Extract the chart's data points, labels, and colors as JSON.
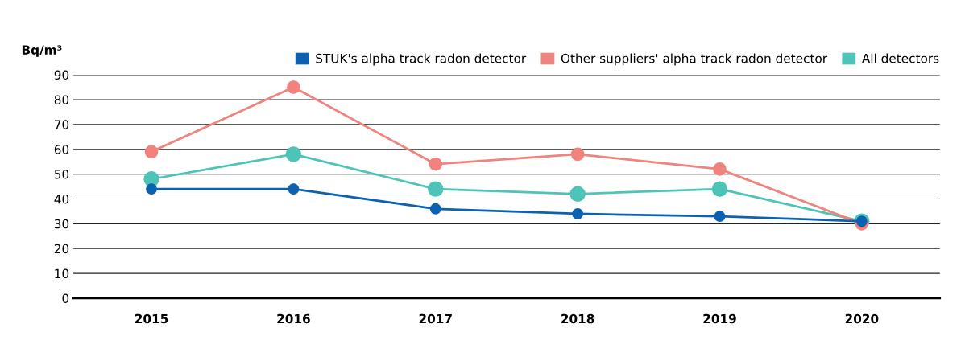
{
  "chart_data": {
    "type": "line",
    "ylabel": "Bq/m³",
    "categories": [
      "2015",
      "2016",
      "2017",
      "2018",
      "2019",
      "2020"
    ],
    "series": [
      {
        "name": "STUK's alpha track radon detector",
        "color": "#0b62b0",
        "values": [
          44,
          44,
          36,
          34,
          33,
          31
        ]
      },
      {
        "name": "Other suppliers' alpha track radon detector",
        "color": "#f0837d",
        "values": [
          59,
          85,
          54,
          58,
          52,
          30
        ]
      },
      {
        "name": "All detectors",
        "color": "#4ec3b8",
        "values": [
          48,
          58,
          44,
          42,
          44,
          31
        ]
      }
    ],
    "ylim": [
      0,
      90
    ],
    "yticks": [
      0,
      10,
      20,
      30,
      40,
      50,
      60,
      70,
      80,
      90
    ],
    "grid": "y",
    "legend": "top right",
    "marker": "circle",
    "line_style": "solid"
  }
}
